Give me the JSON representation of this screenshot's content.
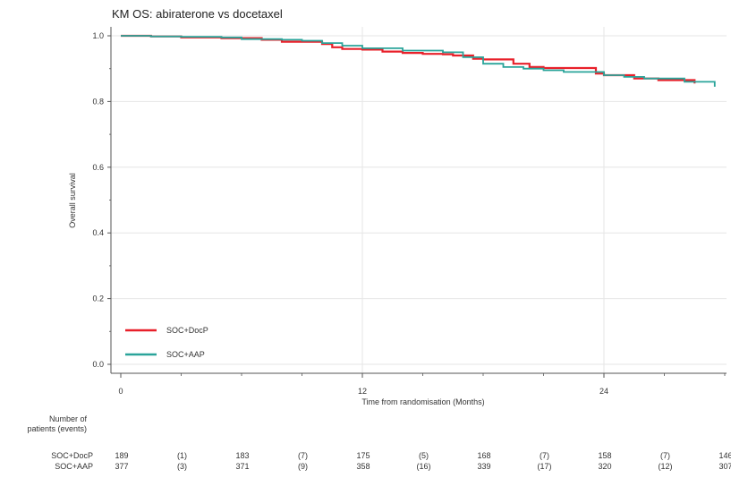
{
  "chart_data": {
    "type": "line",
    "title": "KM OS: abiraterone vs docetaxel",
    "xlabel": "Time from randomisation (Months)",
    "ylabel": "Overall survival",
    "xlim": [
      0,
      30
    ],
    "ylim": [
      0.0,
      1.0
    ],
    "x_ticks": [
      "0",
      "12",
      "24"
    ],
    "y_ticks": [
      "0.0",
      "0.2",
      "0.4",
      "0.6",
      "0.8",
      "1.0"
    ],
    "grid": true,
    "legend_position": "bottom-left",
    "colors": {
      "SOC+DocP": "#e8202a",
      "SOC+AAP": "#2aa49a"
    },
    "series": [
      {
        "name": "SOC+DocP",
        "x": [
          0,
          1.5,
          3,
          5,
          7,
          8,
          10,
          10.5,
          11,
          12,
          13,
          14,
          15,
          16,
          16.5,
          17.5,
          18,
          19.5,
          20.3,
          21,
          23.6,
          24,
          25.5,
          26.7,
          28.5
        ],
        "y": [
          1.0,
          0.998,
          0.995,
          0.993,
          0.988,
          0.982,
          0.975,
          0.965,
          0.96,
          0.958,
          0.952,
          0.948,
          0.945,
          0.944,
          0.94,
          0.93,
          0.928,
          0.915,
          0.905,
          0.902,
          0.885,
          0.88,
          0.87,
          0.865,
          0.855
        ]
      },
      {
        "name": "SOC+AAP",
        "x": [
          0,
          1.5,
          3,
          5,
          6,
          8,
          9,
          10,
          11,
          12,
          14,
          16,
          17,
          18,
          19,
          20,
          21,
          22,
          24,
          25,
          26,
          28,
          29.5
        ],
        "y": [
          1.0,
          0.998,
          0.997,
          0.995,
          0.99,
          0.988,
          0.985,
          0.978,
          0.97,
          0.962,
          0.955,
          0.95,
          0.935,
          0.915,
          0.905,
          0.9,
          0.895,
          0.89,
          0.88,
          0.875,
          0.87,
          0.86,
          0.845
        ]
      }
    ],
    "risk_table": {
      "header": [
        "Number of",
        "patients (events)"
      ],
      "rows": [
        {
          "label": "SOC+DocP",
          "values": [
            "189",
            "(1)",
            "183",
            "(7)",
            "175",
            "(5)",
            "168",
            "(7)",
            "158",
            "(7)",
            "146"
          ]
        },
        {
          "label": "SOC+AAP",
          "values": [
            "377",
            "(3)",
            "371",
            "(9)",
            "358",
            "(16)",
            "339",
            "(17)",
            "320",
            "(12)",
            "307"
          ]
        }
      ]
    }
  }
}
